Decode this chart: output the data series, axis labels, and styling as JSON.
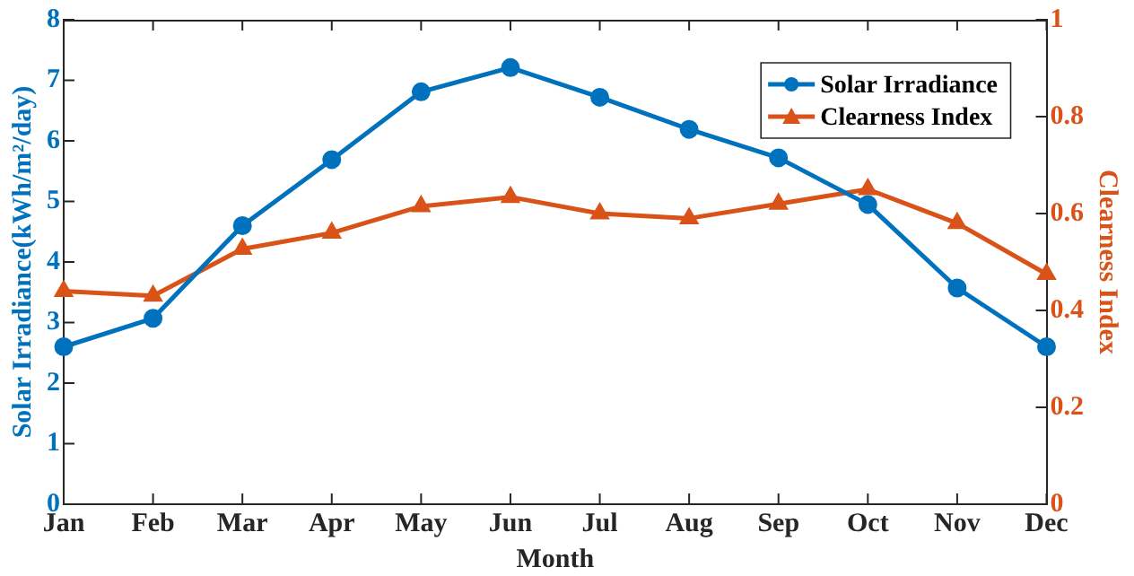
{
  "chart_data": {
    "type": "line",
    "xlabel": "Month",
    "ylabel": "Solar Irradiance(kWh/m²/day)",
    "y2label": "Clearness Index",
    "categories": [
      "Jan",
      "Feb",
      "Mar",
      "Apr",
      "May",
      "Jun",
      "Jul",
      "Aug",
      "Sep",
      "Oct",
      "Nov",
      "Dec"
    ],
    "series": [
      {
        "name": "Solar Irradiance",
        "color": "#0072bd",
        "marker": "circle",
        "values": [
          2.6,
          3.07,
          4.6,
          5.69,
          6.81,
          7.21,
          6.72,
          6.19,
          5.72,
          4.95,
          3.57,
          2.6
        ]
      },
      {
        "name": "Clearness Index",
        "color": "#d95319",
        "marker": "triangle",
        "axis": "y2",
        "values": [
          0.44,
          0.43,
          0.527,
          0.56,
          0.615,
          0.634,
          0.6,
          0.59,
          0.62,
          0.65,
          0.58,
          0.475
        ]
      }
    ],
    "ylim": [
      0,
      8
    ],
    "yticks": [
      0,
      1,
      2,
      3,
      4,
      5,
      6,
      7,
      8
    ],
    "y2lim": [
      0,
      1
    ],
    "y2ticks": [
      0,
      0.2,
      0.4,
      0.6,
      0.8,
      1
    ],
    "grid": false,
    "legend": "top right"
  }
}
